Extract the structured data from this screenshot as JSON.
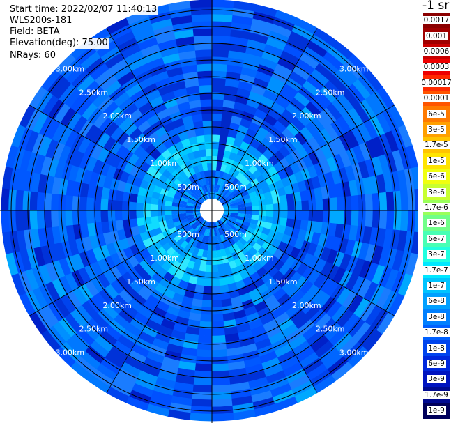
{
  "info": {
    "start_time": "Start time: 2022/02/07 11:40:13",
    "station": "WLS200s-181",
    "field": "Field: BETA",
    "elevation": "Elevation(deg): 75.00",
    "nrays": "NRays: 60"
  },
  "range_labels": [
    "500m",
    "1.00km",
    "1.50km",
    "2.00km",
    "2.50km",
    "3.00km"
  ],
  "colorbar": {
    "title": "-1 sr",
    "labels": [
      "0.0017",
      "0.001",
      "0.0006",
      "0.0003",
      "0.00017",
      "0.0001",
      "6e-5",
      "3e-5",
      "1.7e-5",
      "1e-5",
      "6e-6",
      "3e-6",
      "1.7e-6",
      "1e-6",
      "6e-7",
      "3e-7",
      "1.7e-7",
      "1e-7",
      "6e-8",
      "3e-8",
      "1.7e-8",
      "1e-8",
      "6e-9",
      "3e-9",
      "1.7e-9",
      "1e-9"
    ],
    "colors": [
      "#8b0000",
      "#a00000",
      "#c80000",
      "#ee0000",
      "#ff2a00",
      "#ff5500",
      "#ff7a00",
      "#ffa000",
      "#ffc400",
      "#ffe400",
      "#f0ff10",
      "#c8ff30",
      "#9aff5a",
      "#70ff88",
      "#48ffb4",
      "#20ffe0",
      "#00e8ff",
      "#00c4ff",
      "#00a0ff",
      "#0080ff",
      "#0060ff",
      "#0044ee",
      "#0028dd",
      "#0014c0",
      "#000a90",
      "#00005a"
    ]
  }
}
